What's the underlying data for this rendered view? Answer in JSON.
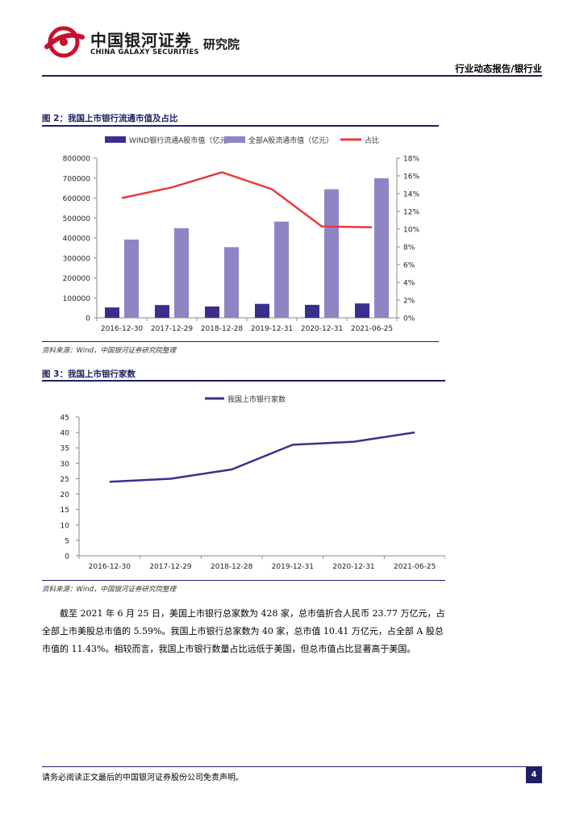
{
  "header": {
    "brand_cn": "中国银河证券",
    "brand_en": "CHINA GALAXY SECURITIES",
    "brand_inst": "研究院",
    "report_type": "行业动态报告/银行业",
    "accent_color": "#1f1f66",
    "logo_color": "#c8102e",
    "logo_icon": "galaxy-logo-icon"
  },
  "figure2": {
    "title": "图 2：我国上市银行流通市值及占比",
    "source": "资料来源：Wind，中国银河证券研究院整理"
  },
  "figure3": {
    "title": "图 3：我国上市银行家数",
    "source": "资料来源：Wind，中国银河证券研究院整理"
  },
  "chart_data": [
    {
      "type": "bar",
      "categories": [
        "2016-12-30",
        "2017-12-29",
        "2018-12-28",
        "2019-12-31",
        "2020-12-31",
        "2021-06-25"
      ],
      "series": [
        {
          "name": "WIND银行流通A股市值（亿元）",
          "kind": "bar",
          "axis": "left",
          "color": "#3a2f8f",
          "values": [
            52000,
            64000,
            57000,
            70000,
            65000,
            72000
          ]
        },
        {
          "name": "全部A股流通市值（亿元）",
          "kind": "bar",
          "axis": "left",
          "color": "#8e86c4",
          "values": [
            392000,
            449000,
            354000,
            482000,
            644000,
            699000
          ]
        },
        {
          "name": "占比",
          "kind": "line",
          "axis": "right",
          "color": "#e83a3a",
          "values": [
            13.5,
            14.7,
            16.4,
            14.5,
            10.3,
            10.2
          ]
        }
      ],
      "left_axis": {
        "ylim": [
          0,
          800000
        ],
        "ticks": [
          "0",
          "100000",
          "200000",
          "300000",
          "400000",
          "500000",
          "600000",
          "700000",
          "800000"
        ]
      },
      "right_axis": {
        "ylim": [
          0,
          18
        ],
        "ticks": [
          "0%",
          "2%",
          "4%",
          "6%",
          "8%",
          "10%",
          "12%",
          "14%",
          "16%",
          "18%"
        ]
      },
      "legend": "top",
      "grid": false
    },
    {
      "type": "line",
      "categories": [
        "2016-12-30",
        "2017-12-29",
        "2018-12-28",
        "2019-12-31",
        "2020-12-31",
        "2021-06-25"
      ],
      "series": [
        {
          "name": "我国上市银行家数",
          "color": "#3a2f8f",
          "values": [
            24,
            25,
            28,
            36,
            37,
            40
          ]
        }
      ],
      "ylim": [
        0,
        45
      ],
      "yticks": [
        "0",
        "5",
        "10",
        "15",
        "20",
        "25",
        "30",
        "35",
        "40",
        "45"
      ],
      "legend": "top",
      "grid": false
    }
  ],
  "body": {
    "paragraph": "截至 2021 年 6 月 25 日，美国上市银行总家数为 428 家，总市值折合人民币 23.77 万亿元，占全部上市美股总市值的 5.59%。我国上市银行总家数为 40 家，总市值 10.41 万亿元，占全部 A 股总市值的 11.43%。相较而言，我国上市银行数量占比远低于美国，但总市值占比显著高于美国。"
  },
  "footer": {
    "disclaimer": "请务必阅读正文最后的中国银河证券股份公司免责声明。",
    "page_number": "4"
  }
}
